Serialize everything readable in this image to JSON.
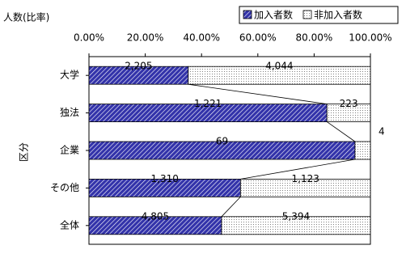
{
  "chart_data": {
    "type": "bar",
    "orientation": "horizontal",
    "stacking": "percent",
    "x_label": "人数(比率)",
    "y_label": "区分",
    "categories": [
      "大学",
      "独法",
      "企業",
      "その他",
      "全体"
    ],
    "series": [
      {
        "name": "加入者数",
        "color": "#3333aa",
        "pattern": "hatch",
        "values": [
          2205,
          1221,
          69,
          1310,
          4805
        ],
        "value_labels": [
          "2,205",
          "1,221",
          "69",
          "1,310",
          "4,805"
        ]
      },
      {
        "name": "非加入者数",
        "color": "#808080",
        "pattern": "dots",
        "values": [
          4044,
          223,
          4,
          1123,
          5394
        ],
        "value_labels": [
          "4,044",
          "223",
          "4",
          "1,123",
          "5,394"
        ]
      }
    ],
    "xlim": [
      0,
      100
    ],
    "xticks": [
      {
        "value": 0,
        "label": "0.00%"
      },
      {
        "value": 20,
        "label": "20.00%"
      },
      {
        "value": 40,
        "label": "40.00%"
      },
      {
        "value": 60,
        "label": "60.00%"
      },
      {
        "value": 80,
        "label": "80.00%"
      },
      {
        "value": 100,
        "label": "100.00%"
      }
    ],
    "series_lines": true,
    "legend": "top-right"
  }
}
